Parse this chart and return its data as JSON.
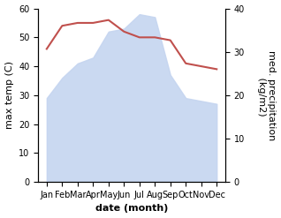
{
  "months": [
    "Jan",
    "Feb",
    "Mar",
    "Apr",
    "May",
    "Jun",
    "Jul",
    "Aug",
    "Sep",
    "Oct",
    "Nov",
    "Dec"
  ],
  "max_temp": [
    46,
    54,
    55,
    55,
    56,
    52,
    50,
    50,
    49,
    41,
    40,
    39
  ],
  "precip_left_axis": [
    29,
    36,
    41,
    43,
    52,
    53,
    58,
    57,
    37,
    29,
    28,
    27
  ],
  "temp_color": "#c0504d",
  "precip_fill_color": "#c5d5f0",
  "ylabel_left": "max temp (C)",
  "ylabel_right": "med. precipitation\n (kg/m2)",
  "xlabel": "date (month)",
  "ylim_left": [
    0,
    60
  ],
  "ylim_right": [
    0,
    40
  ],
  "yticks_left": [
    0,
    10,
    20,
    30,
    40,
    50,
    60
  ],
  "yticks_right": [
    0,
    10,
    20,
    30,
    40
  ],
  "background_color": "#ffffff",
  "temp_linewidth": 1.5,
  "label_fontsize": 8,
  "tick_fontsize": 7
}
